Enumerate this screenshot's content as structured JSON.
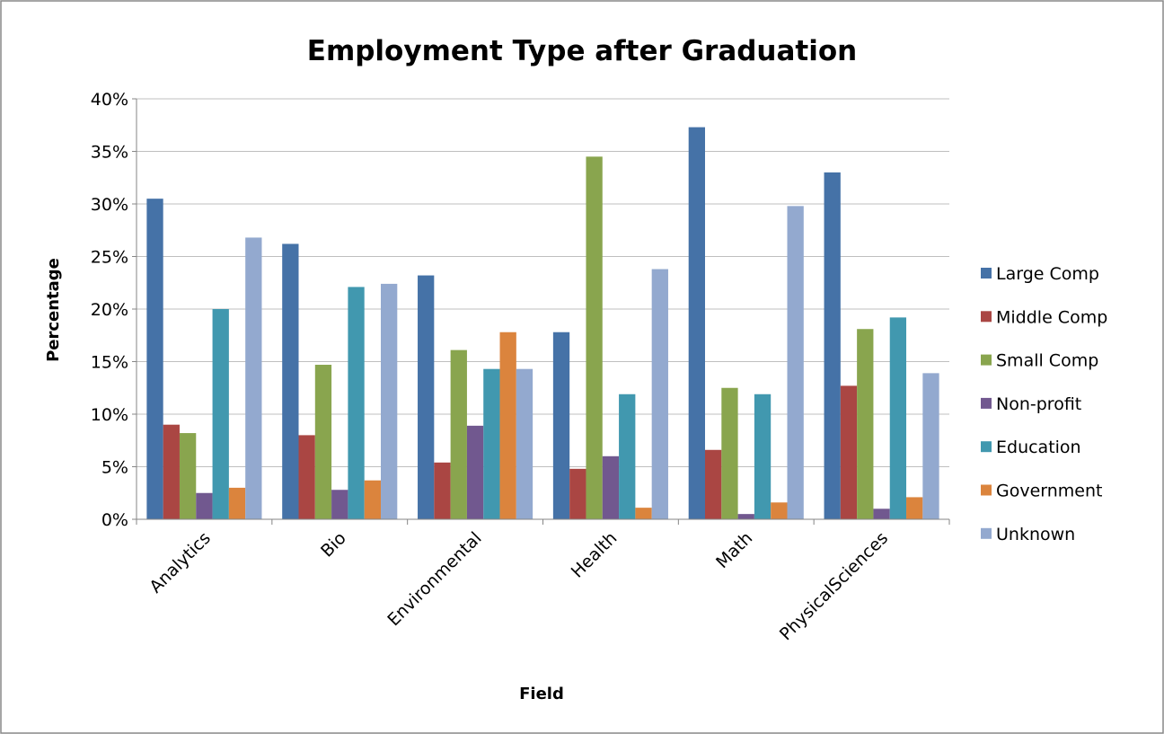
{
  "chart_data": {
    "type": "bar",
    "title": "Employment Type after Graduation",
    "xlabel": "Field",
    "ylabel": "Percentage",
    "categories": [
      "Analytics",
      "Bio",
      "Environmental",
      "Health",
      "Math",
      "PhysicalSciences"
    ],
    "ylim": [
      0,
      40
    ],
    "yticks": [
      "0%",
      "5%",
      "10%",
      "15%",
      "20%",
      "25%",
      "30%",
      "35%",
      "40%"
    ],
    "grid": true,
    "legend_position": "right",
    "series": [
      {
        "name": "Large Comp",
        "color": "#4572A7",
        "values": [
          30.5,
          26.2,
          23.2,
          17.8,
          37.3,
          33.0
        ]
      },
      {
        "name": "Middle Comp",
        "color": "#AA4643",
        "values": [
          9.0,
          8.0,
          5.4,
          4.8,
          6.6,
          12.7
        ]
      },
      {
        "name": "Small Comp",
        "color": "#89A54E",
        "values": [
          8.2,
          14.7,
          16.1,
          34.5,
          12.5,
          18.1
        ]
      },
      {
        "name": "Non-profit",
        "color": "#71588F",
        "values": [
          2.5,
          2.8,
          8.9,
          6.0,
          0.5,
          1.0
        ]
      },
      {
        "name": "Education",
        "color": "#4198AF",
        "values": [
          20.0,
          22.1,
          14.3,
          11.9,
          11.9,
          19.2
        ]
      },
      {
        "name": "Government",
        "color": "#DB843D",
        "values": [
          3.0,
          3.7,
          17.8,
          1.1,
          1.6,
          2.1
        ]
      },
      {
        "name": "Unknown",
        "color": "#93A9CF",
        "values": [
          26.8,
          22.4,
          14.3,
          23.8,
          29.8,
          13.9
        ]
      }
    ]
  }
}
